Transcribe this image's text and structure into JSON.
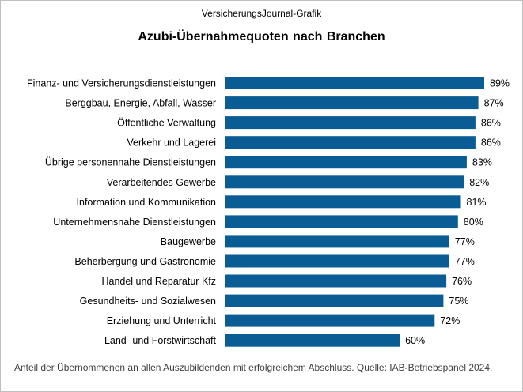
{
  "header": {
    "source_line": "VersicherungsJournal-Grafik",
    "title": "Azubi-Übernahmequoten  nach Branchen"
  },
  "footnote": "Anteil der Übernommenen  an allen Auszubildenden  mit erfolgreichem  Abschluss. Quelle: IAB-Betriebspanel 2024.",
  "colors": {
    "bar": "#0a5c94",
    "text": "#000000",
    "frame": "#bfbfbf",
    "footnote": "#404040"
  },
  "chart_data": {
    "type": "bar",
    "orientation": "horizontal",
    "title": "Azubi-Übernahmequoten  nach Branchen",
    "categories": [
      "Finanz- und Versicherungsdienstleistungen",
      "Berggbau, Energie, Abfall, Wasser",
      "Öffentliche Verwaltung",
      "Verkehr und Lagerei",
      "Übrige personennahe Dienstleistungen",
      "Verarbeitendes Gewerbe",
      "Information und Kommunikation",
      "Unternehmensnahe Dienstleistungen",
      "Baugewerbe",
      "Beherbergung und Gastronomie",
      "Handel und Reparatur Kfz",
      "Gesundheits- und Sozialwesen",
      "Erziehung und Unterricht",
      "Land- und Forstwirtschaft"
    ],
    "values": [
      89,
      87,
      86,
      86,
      83,
      82,
      81,
      80,
      77,
      77,
      76,
      75,
      72,
      60
    ],
    "value_labels": [
      "89%",
      "87%",
      "86%",
      "86%",
      "83%",
      "82%",
      "81%",
      "80%",
      "77%",
      "77%",
      "76%",
      "75%",
      "72%",
      "60%"
    ],
    "unit": "%",
    "xlim": [
      0,
      89
    ],
    "grid": false,
    "legend": "none"
  }
}
